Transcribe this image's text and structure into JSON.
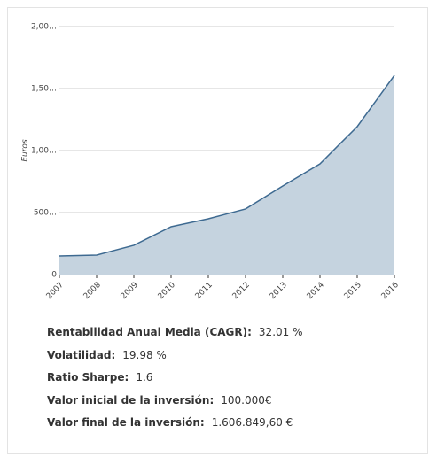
{
  "chart_data": {
    "type": "area",
    "ylabel": "Euros",
    "categories": [
      "2007",
      "2008",
      "2009",
      "2010",
      "2011",
      "2012",
      "2013",
      "2014",
      "2015",
      "2016"
    ],
    "values": [
      150000,
      157000,
      236000,
      386000,
      450000,
      529000,
      714000,
      893000,
      1193000,
      1606850
    ],
    "color": "#3e6a91",
    "fill": "#c5d3df",
    "ylim": [
      0,
      2000000
    ],
    "yticks": [
      0,
      {
        "value": 500000,
        "label": "500…"
      },
      {
        "value": 1000000,
        "label": "1,00…"
      },
      {
        "value": 1500000,
        "label": "1,50…"
      },
      {
        "value": 2000000,
        "label": "2,00…"
      }
    ],
    "grid": true
  },
  "stats": [
    {
      "label": "Rentabilidad Anual Media (CAGR):",
      "value": "32.01 %"
    },
    {
      "label": "Volatilidad:",
      "value": "19.98 %"
    },
    {
      "label": "Ratio Sharpe:",
      "value": "1.6"
    },
    {
      "label": "Valor inicial de la inversión:",
      "value": "100.000€"
    },
    {
      "label": "Valor final de la inversión:",
      "value": "1.606.849,60 €"
    }
  ]
}
